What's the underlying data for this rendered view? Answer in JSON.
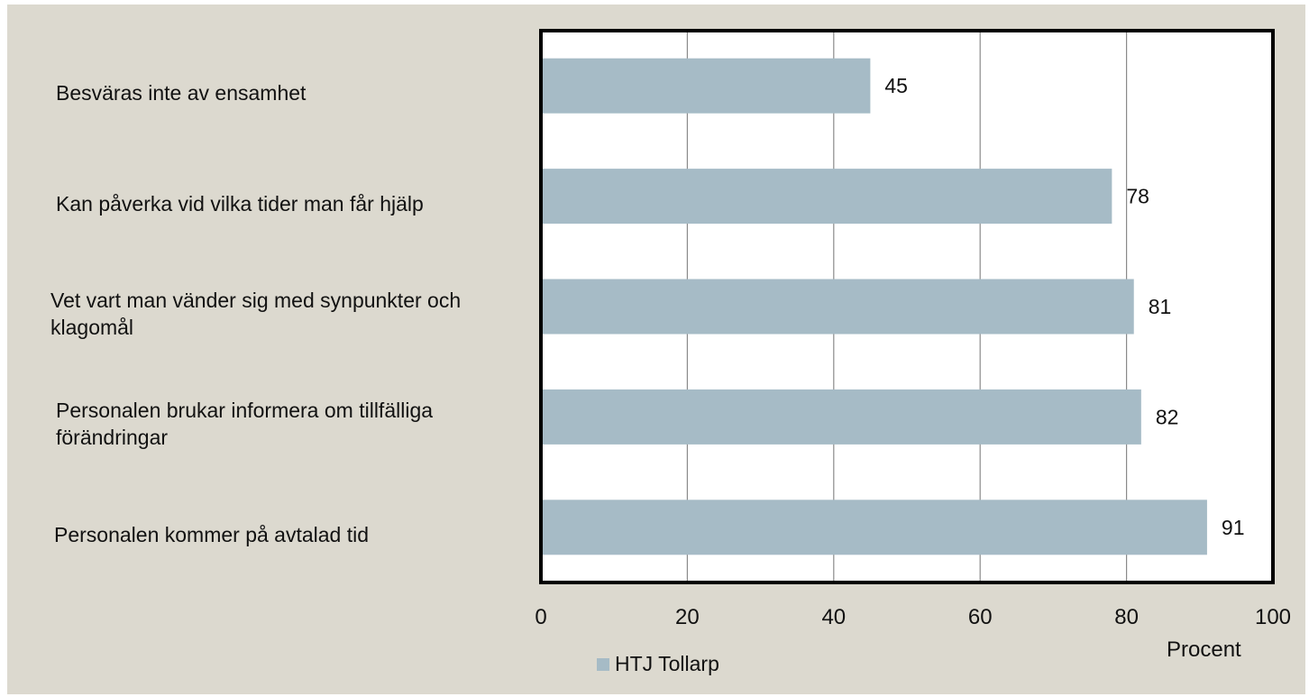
{
  "chart_data": {
    "type": "bar",
    "orientation": "horizontal",
    "categories": [
      "Besväras inte av ensamhet",
      "Kan påverka vid vilka tider man får hjälp",
      "Vet vart man vänder sig med synpunkter och klagomål",
      "Personalen brukar informera om tillfälliga förändringar",
      "Personalen kommer på avtalad tid"
    ],
    "series": [
      {
        "name": "HTJ Tollarp",
        "values": [
          45,
          78,
          81,
          82,
          91
        ],
        "color": "#a6bbc6"
      }
    ],
    "xlabel": "Procent",
    "xlim": [
      0,
      100
    ],
    "xticks": [
      0,
      20,
      40,
      60,
      80,
      100
    ],
    "data_labels": true,
    "grid": "vertical",
    "legend_position": "bottom"
  }
}
